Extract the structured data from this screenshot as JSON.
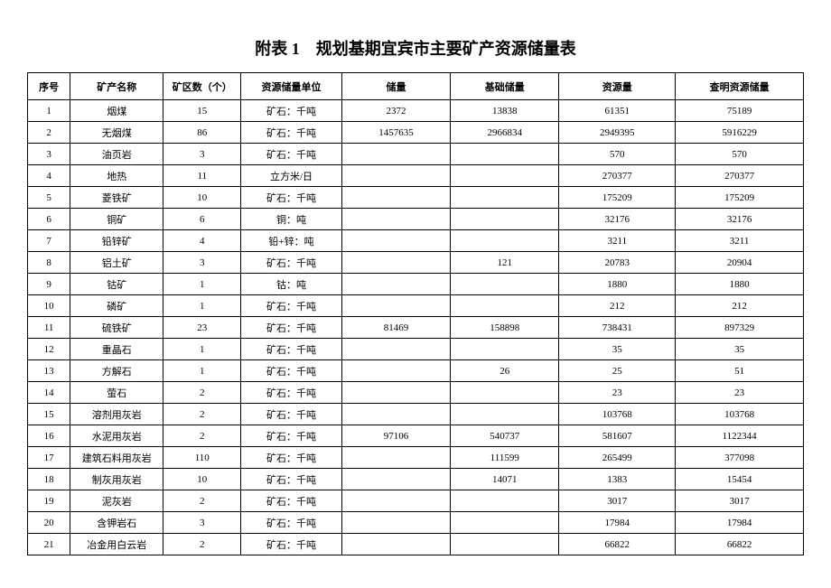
{
  "title": "附表 1　规划基期宜宾市主要矿产资源储量表",
  "title_fontsize": "18px",
  "table": {
    "columns": [
      "序号",
      "矿产名称",
      "矿区数（个）",
      "资源储量单位",
      "储量",
      "基础储量",
      "资源量",
      "查明资源储量"
    ],
    "rows": [
      [
        "1",
        "烟煤",
        "15",
        "矿石：千吨",
        "2372",
        "13838",
        "61351",
        "75189"
      ],
      [
        "2",
        "无烟煤",
        "86",
        "矿石：千吨",
        "1457635",
        "2966834",
        "2949395",
        "5916229"
      ],
      [
        "3",
        "油页岩",
        "3",
        "矿石：千吨",
        "",
        "",
        "570",
        "570"
      ],
      [
        "4",
        "地热",
        "11",
        "立方米/日",
        "",
        "",
        "270377",
        "270377"
      ],
      [
        "5",
        "菱铁矿",
        "10",
        "矿石：千吨",
        "",
        "",
        "175209",
        "175209"
      ],
      [
        "6",
        "铜矿",
        "6",
        "铜：吨",
        "",
        "",
        "32176",
        "32176"
      ],
      [
        "7",
        "铅锌矿",
        "4",
        "铅+锌：吨",
        "",
        "",
        "3211",
        "3211"
      ],
      [
        "8",
        "铝土矿",
        "3",
        "矿石：千吨",
        "",
        "121",
        "20783",
        "20904"
      ],
      [
        "9",
        "钴矿",
        "1",
        "钴：吨",
        "",
        "",
        "1880",
        "1880"
      ],
      [
        "10",
        "磷矿",
        "1",
        "矿石：千吨",
        "",
        "",
        "212",
        "212"
      ],
      [
        "11",
        "硫铁矿",
        "23",
        "矿石：千吨",
        "81469",
        "158898",
        "738431",
        "897329"
      ],
      [
        "12",
        "重晶石",
        "1",
        "矿石：千吨",
        "",
        "",
        "35",
        "35"
      ],
      [
        "13",
        "方解石",
        "1",
        "矿石：千吨",
        "",
        "26",
        "25",
        "51"
      ],
      [
        "14",
        "萤石",
        "2",
        "矿石：千吨",
        "",
        "",
        "23",
        "23"
      ],
      [
        "15",
        "溶剂用灰岩",
        "2",
        "矿石：千吨",
        "",
        "",
        "103768",
        "103768"
      ],
      [
        "16",
        "水泥用灰岩",
        "2",
        "矿石：千吨",
        "97106",
        "540737",
        "581607",
        "1122344"
      ],
      [
        "17",
        "建筑石料用灰岩",
        "110",
        "矿石：千吨",
        "",
        "111599",
        "265499",
        "377098"
      ],
      [
        "18",
        "制灰用灰岩",
        "10",
        "矿石：千吨",
        "",
        "14071",
        "1383",
        "15454"
      ],
      [
        "19",
        "泥灰岩",
        "2",
        "矿石：千吨",
        "",
        "",
        "3017",
        "3017"
      ],
      [
        "20",
        "含钾岩石",
        "3",
        "矿石：千吨",
        "",
        "",
        "17984",
        "17984"
      ],
      [
        "21",
        "冶金用白云岩",
        "2",
        "矿石：千吨",
        "",
        "",
        "66822",
        "66822"
      ]
    ]
  }
}
